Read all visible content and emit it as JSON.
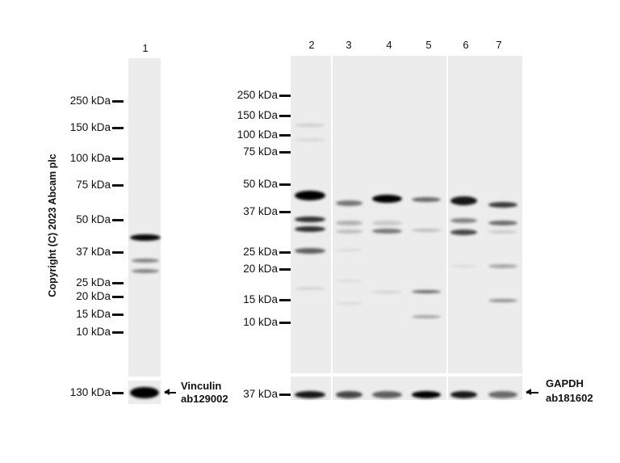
{
  "left_blot": {
    "lane_labels": [
      "1"
    ],
    "markers": [
      "250 kDa",
      "150 kDa",
      "100 kDa",
      "75 kDa",
      "50 kDa",
      "37 kDa",
      "25 kDa",
      "20 kDa",
      "15 kDa",
      "10 kDa"
    ],
    "loading_marker": "130 kDa",
    "loading_control": {
      "name": "Vinculin",
      "antibody": "ab129002"
    }
  },
  "right_blot": {
    "lane_labels": [
      "2",
      "3",
      "4",
      "5",
      "6",
      "7"
    ],
    "markers": [
      "250 kDa",
      "150 kDa",
      "100 kDa",
      "75 kDa",
      "50 kDa",
      "37 kDa",
      "25 kDa",
      "20 kDa",
      "15 kDa",
      "10 kDa"
    ],
    "loading_marker": "37 kDa",
    "loading_control": {
      "name": "GAPDH",
      "antibody": "ab181602"
    }
  },
  "copyright": "Copyright (C) 2023 Abcam plc",
  "colors": {
    "membrane": "#ececec",
    "band": "#000000"
  }
}
